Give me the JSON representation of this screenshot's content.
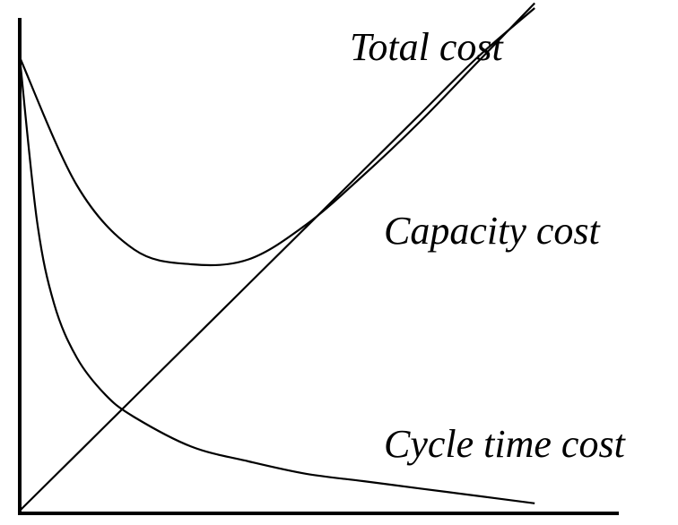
{
  "chart_data": {
    "type": "line",
    "title": "",
    "xlabel": "",
    "ylabel": "",
    "grid": false,
    "legend": "none",
    "xlim": [
      0,
      10
    ],
    "ylim": [
      0,
      10
    ],
    "series": [
      {
        "name": "Total cost",
        "x": [
          0,
          1,
          2,
          3,
          4,
          5,
          6,
          7,
          8,
          9
        ],
        "y": [
          9.2,
          6.6,
          5.3,
          5.0,
          5.1,
          5.8,
          6.8,
          7.9,
          9.1,
          10.3
        ]
      },
      {
        "name": "Capacity cost",
        "x": [
          0,
          1,
          2,
          3,
          4,
          5,
          6,
          7,
          8,
          9
        ],
        "y": [
          0,
          1.15,
          2.3,
          3.45,
          4.6,
          5.75,
          6.9,
          8.05,
          9.2,
          10.2
        ]
      },
      {
        "name": "Cycle time cost",
        "x": [
          0,
          0.3,
          0.6,
          1,
          1.5,
          2,
          3,
          4,
          5,
          6,
          7,
          8,
          9
        ],
        "y": [
          9.2,
          5.9,
          4.2,
          3.1,
          2.35,
          1.9,
          1.3,
          1.0,
          0.75,
          0.6,
          0.45,
          0.3,
          0.15
        ]
      }
    ]
  }
}
